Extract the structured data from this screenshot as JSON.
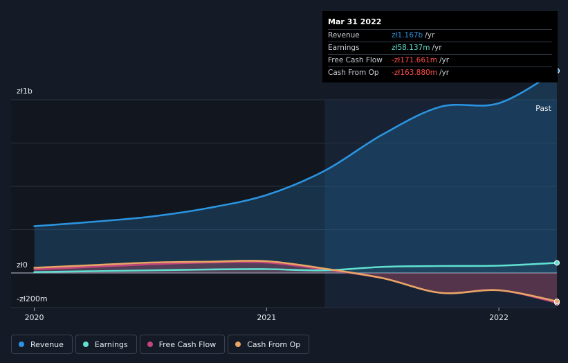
{
  "tooltip": {
    "date": "Mar 31 2022",
    "rows": [
      {
        "label": "Revenue",
        "value": "zł1.167b",
        "unit": "/yr",
        "color": "#2b94e0"
      },
      {
        "label": "Earnings",
        "value": "zł58.137m",
        "unit": "/yr",
        "color": "#5fe0d0"
      },
      {
        "label": "Free Cash Flow",
        "value": "-zł171.661m",
        "unit": "/yr",
        "color": "#ff4d4d"
      },
      {
        "label": "Cash From Op",
        "value": "-zł163.880m",
        "unit": "/yr",
        "color": "#ff4d4d"
      }
    ]
  },
  "past_label": "Past",
  "legend": [
    {
      "label": "Revenue",
      "color": "#2b94e0"
    },
    {
      "label": "Earnings",
      "color": "#5fe0d0"
    },
    {
      "label": "Free Cash Flow",
      "color": "#c4457e"
    },
    {
      "label": "Cash From Op",
      "color": "#e8a565"
    }
  ],
  "chart_data": {
    "type": "line",
    "y_unit": "PLN millions",
    "ylim": [
      -200,
      1000
    ],
    "y_ticks": [
      {
        "value": 1000,
        "label": "zł1b"
      },
      {
        "value": 0,
        "label": "zł0"
      },
      {
        "value": -200,
        "label": "-zł200m"
      }
    ],
    "x_ticks": [
      {
        "value": 2020.0,
        "label": "2020"
      },
      {
        "value": 2021.0,
        "label": "2021"
      },
      {
        "value": 2022.0,
        "label": "2022"
      }
    ],
    "xlim": [
      2019.9,
      2022.25
    ],
    "past_start": 2021.25,
    "grid": true,
    "series": [
      {
        "name": "Revenue",
        "color": "#2b94e0",
        "x": [
          2020.0,
          2020.25,
          2020.5,
          2020.75,
          2021.0,
          2021.25,
          2021.5,
          2021.75,
          2022.0,
          2022.25
        ],
        "y": [
          270,
          295,
          325,
          375,
          450,
          590,
          800,
          960,
          980,
          1167
        ]
      },
      {
        "name": "Earnings",
        "color": "#5fe0d0",
        "x": [
          2020.0,
          2020.25,
          2020.5,
          2020.75,
          2021.0,
          2021.25,
          2021.5,
          2021.75,
          2022.0,
          2022.25
        ],
        "y": [
          5,
          10,
          15,
          20,
          22,
          15,
          35,
          40,
          42,
          58.137
        ]
      },
      {
        "name": "Free Cash Flow",
        "color": "#c4457e",
        "x": [
          2020.0,
          2020.25,
          2020.5,
          2020.75,
          2021.0,
          2021.25,
          2021.5,
          2021.75,
          2022.0,
          2022.25
        ],
        "y": [
          20,
          35,
          50,
          60,
          60,
          20,
          -30,
          -115,
          -100,
          -171.661
        ]
      },
      {
        "name": "Cash From Op",
        "color": "#e8a565",
        "x": [
          2020.0,
          2020.25,
          2020.5,
          2020.75,
          2021.0,
          2021.25,
          2021.5,
          2021.75,
          2022.0,
          2022.25
        ],
        "y": [
          30,
          45,
          60,
          65,
          68,
          25,
          -30,
          -115,
          -100,
          -163.88
        ]
      }
    ]
  }
}
